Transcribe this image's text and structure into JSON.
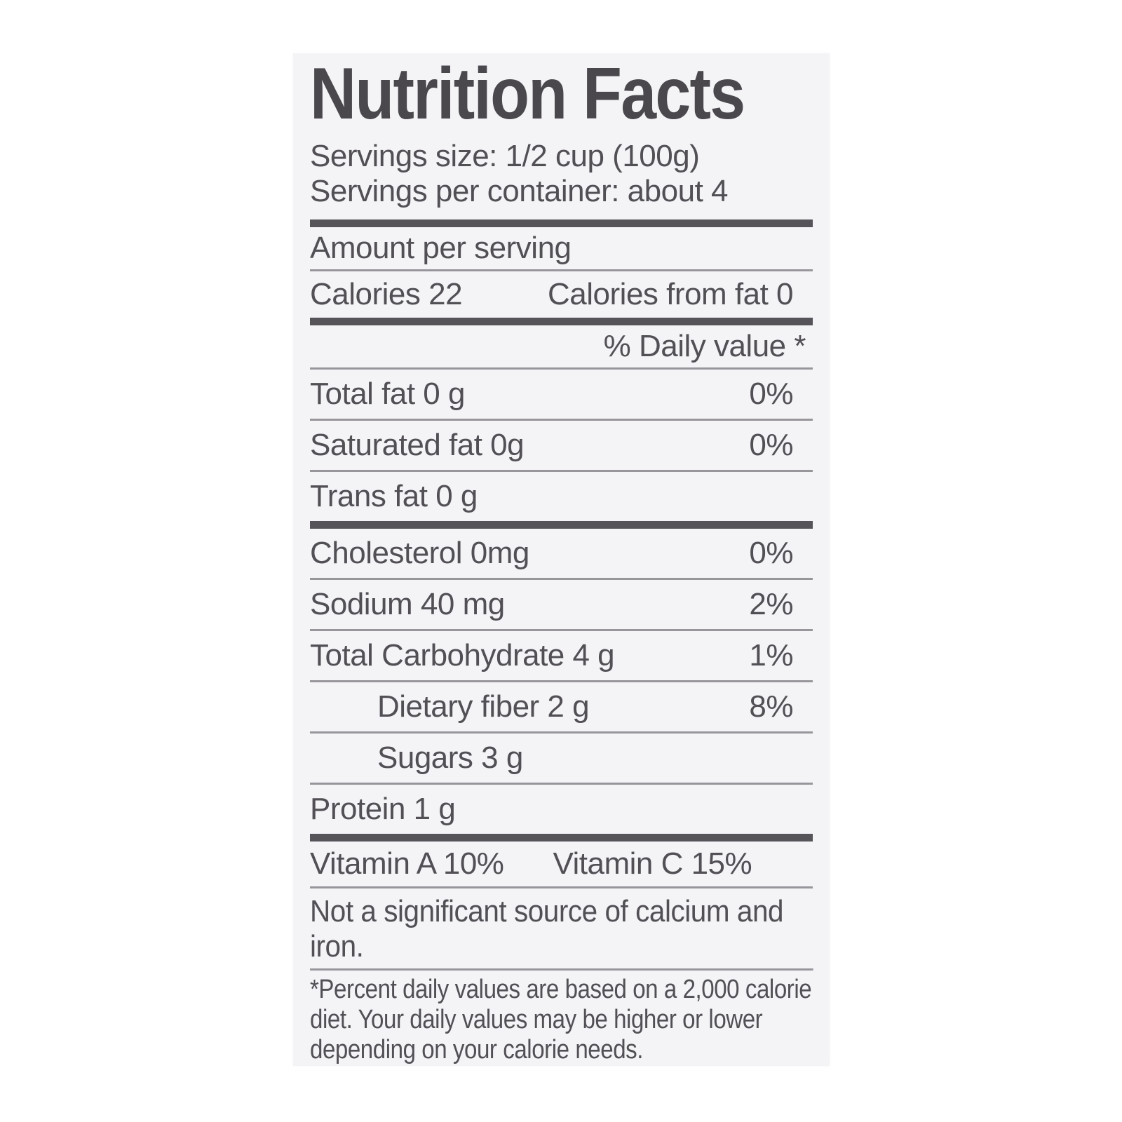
{
  "colors": {
    "page_background": "#ffffff",
    "label_background": "#f4f3f6",
    "text": "#525055",
    "title_text": "#4a484d",
    "thick_bar": "#565459",
    "thin_rule": "#98969b"
  },
  "label": {
    "title": "Nutrition Facts",
    "serving_lines": [
      "Servings size: 1/2 cup (100g)",
      "Servings per container: about 4"
    ],
    "amount_per_serving": "Amount per serving",
    "calories": "Calories 22",
    "calories_from_fat": "Calories from fat 0",
    "daily_value_header": "% Daily value *",
    "nutrient_rows": [
      {
        "name": "Total fat 0 g",
        "percent": "0%"
      },
      {
        "name": "Saturated fat 0g",
        "percent": "0%"
      },
      {
        "name": "Trans fat 0 g",
        "percent": ""
      },
      {
        "name": "Cholesterol 0mg",
        "percent": "0%"
      },
      {
        "name": "Sodium 40 mg",
        "percent": "2%"
      },
      {
        "name": "Total Carbohydrate 4 g",
        "percent": "1%"
      },
      {
        "name": "Dietary fiber 2 g",
        "percent": "8%"
      },
      {
        "name": "Sugars 3 g",
        "percent": ""
      },
      {
        "name": "Protein 1 g",
        "percent": ""
      }
    ],
    "vitamin_a": "Vitamin A 10%",
    "vitamin_c": "Vitamin C 15%",
    "note": "Not a significant source of calcium and iron.",
    "footnote": "*Percent daily values are based on a 2,000 calorie diet. Your daily values may be higher or lower depending on your calorie needs."
  }
}
